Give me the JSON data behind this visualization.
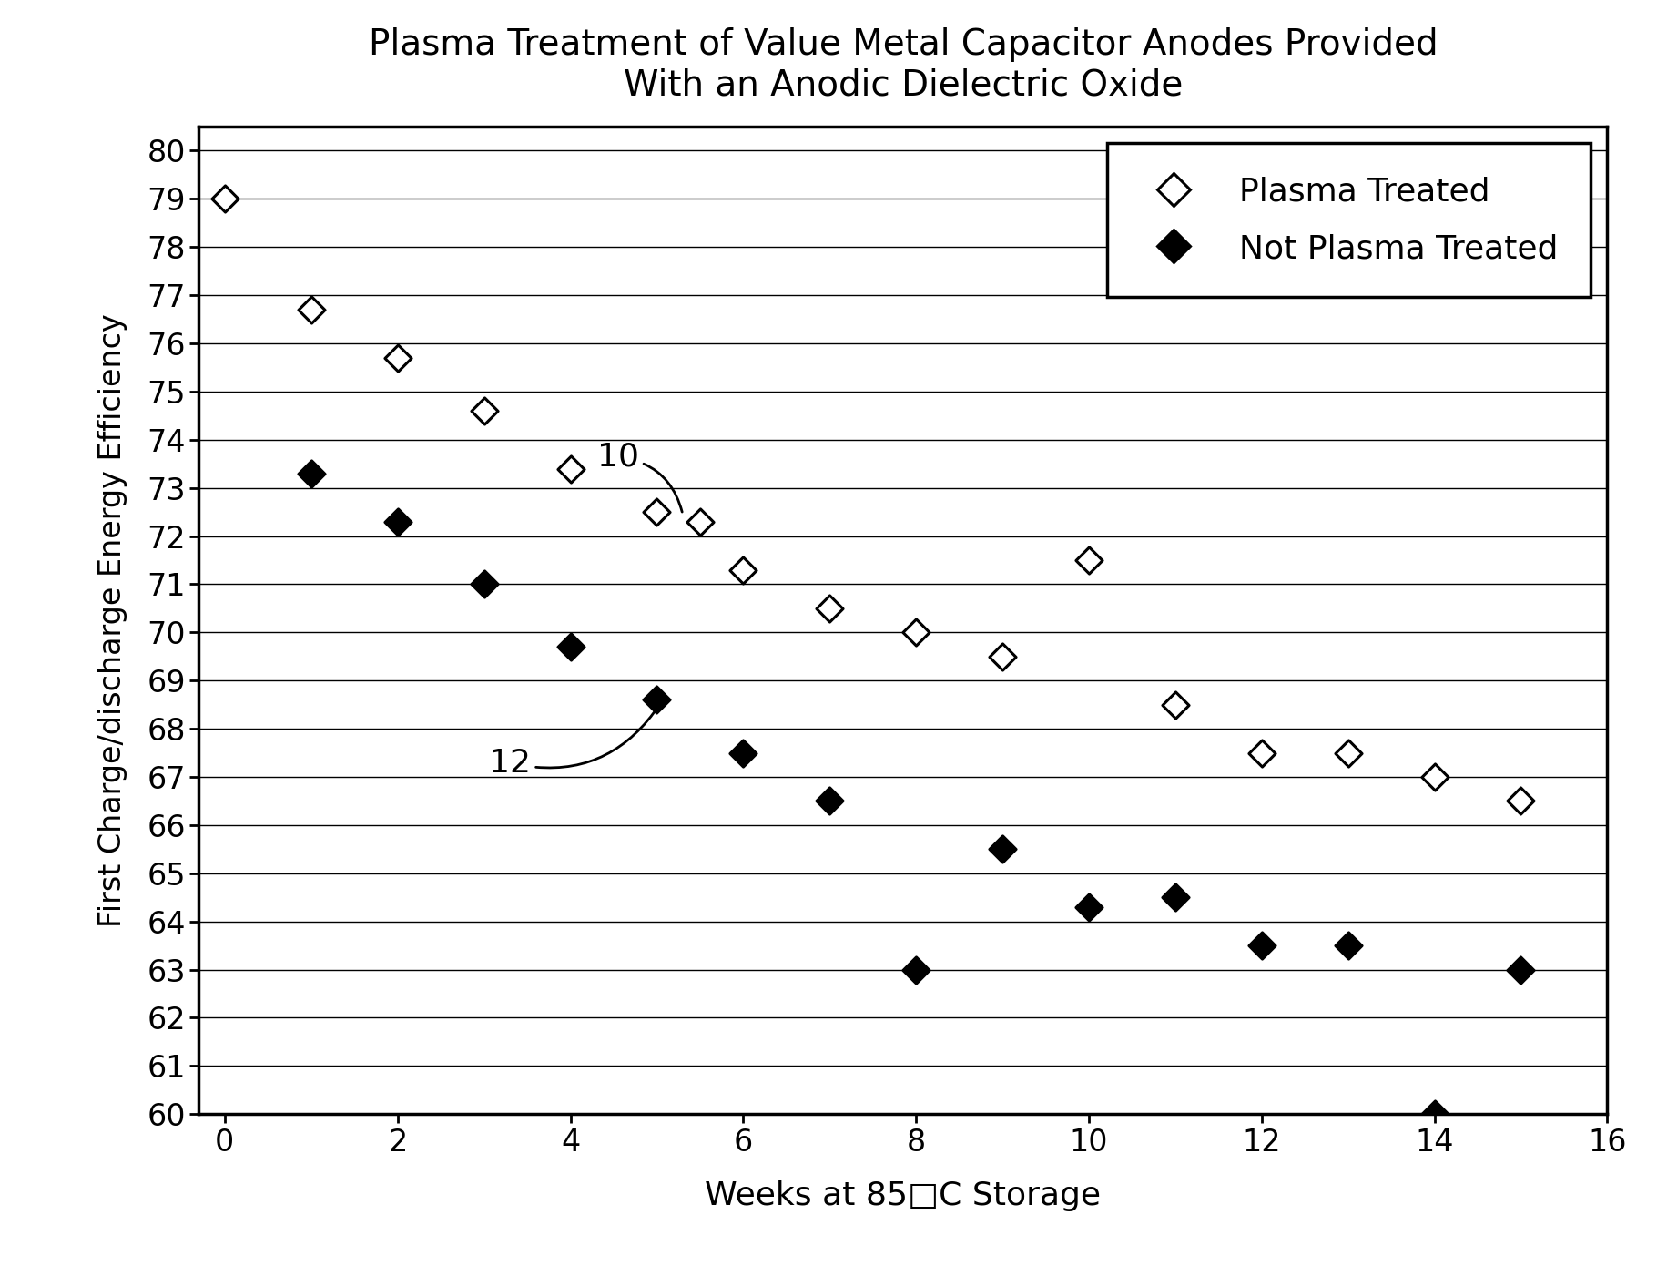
{
  "title": "Plasma Treatment of Value Metal Capacitor Anodes Provided\nWith an Anodic Dielectric Oxide",
  "xlabel": "Weeks at 85□C Storage",
  "ylabel": "First Charge/discharge Energy Efficiency",
  "xlim": [
    -0.3,
    16
  ],
  "ylim": [
    60,
    80.5
  ],
  "yticks": [
    60,
    61,
    62,
    63,
    64,
    65,
    66,
    67,
    68,
    69,
    70,
    71,
    72,
    73,
    74,
    75,
    76,
    77,
    78,
    79,
    80
  ],
  "xticks": [
    0,
    2,
    4,
    6,
    8,
    10,
    12,
    14,
    16
  ],
  "plasma_treated_x": [
    0,
    1,
    2,
    3,
    4,
    5,
    5.5,
    6,
    7,
    8,
    9,
    10,
    11,
    12,
    13,
    14,
    15
  ],
  "plasma_treated_y": [
    79.0,
    76.7,
    75.7,
    74.6,
    73.4,
    72.5,
    72.3,
    71.3,
    70.5,
    70.0,
    69.5,
    71.5,
    68.5,
    67.5,
    67.5,
    67.0,
    66.5
  ],
  "not_plasma_treated_x": [
    1,
    2,
    3,
    4,
    5,
    6,
    7,
    8,
    9,
    10,
    11,
    12,
    13,
    14,
    15
  ],
  "not_plasma_treated_y": [
    73.3,
    72.3,
    71.0,
    69.7,
    68.6,
    67.5,
    66.5,
    63.0,
    65.5,
    64.3,
    64.5,
    63.5,
    63.5,
    60.0,
    63.0
  ],
  "marker_size": 220,
  "title_fontsize": 28,
  "label_fontsize": 26,
  "tick_fontsize": 24,
  "legend_fontsize": 26
}
